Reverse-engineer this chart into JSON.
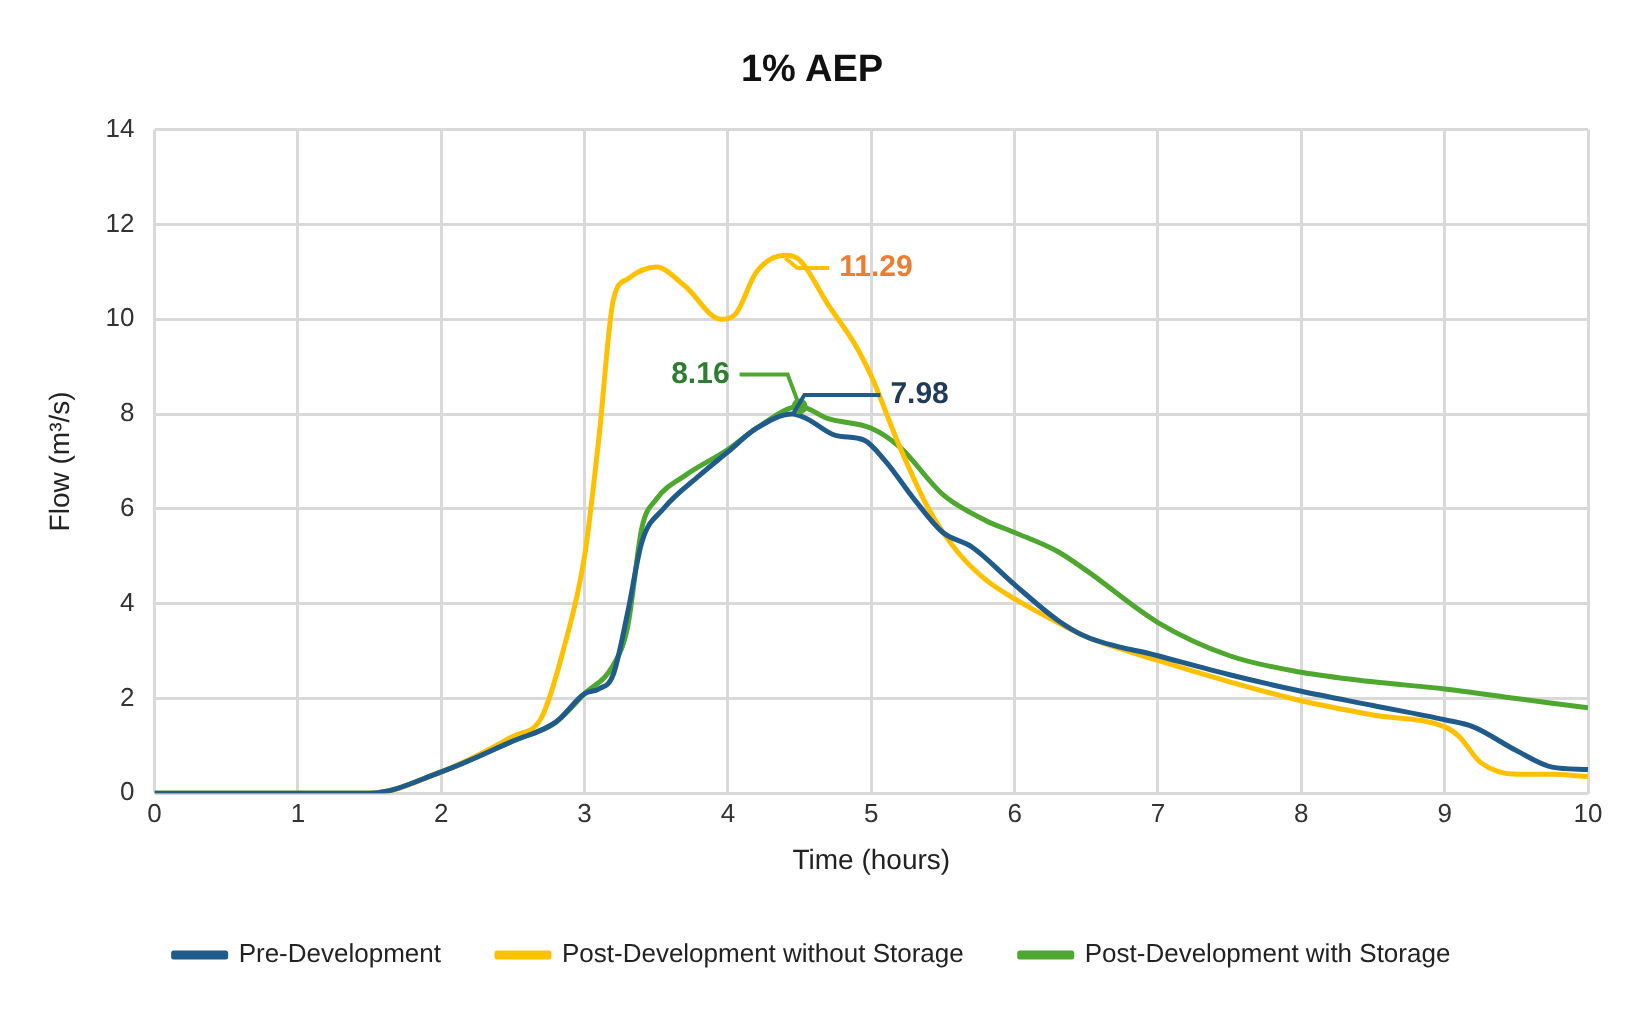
{
  "chart_data": {
    "type": "line",
    "title": "1% AEP",
    "xlabel": "Time (hours)",
    "ylabel": "Flow (m³/s)",
    "xlim": [
      0,
      10
    ],
    "xticks": [
      0,
      1,
      2,
      3,
      4,
      5,
      6,
      7,
      8,
      9,
      10
    ],
    "ylim": [
      0,
      14
    ],
    "yticks": [
      0,
      2,
      4,
      6,
      8,
      10,
      12,
      14
    ],
    "grid": true,
    "legend": "bottom",
    "marker": "none",
    "line_style": "solid",
    "series": [
      {
        "name": "Pre-Development",
        "color": "#1f5c8b",
        "x": [
          0,
          1.5,
          2,
          2.5,
          2.8,
          3,
          3.1,
          3.2,
          3.3,
          3.4,
          3.55,
          3.8,
          4,
          4.2,
          4.45,
          4.55,
          4.75,
          4.95,
          5.1,
          5.3,
          5.5,
          5.7,
          6,
          6.3,
          6.5,
          7,
          7.5,
          8,
          8.5,
          9,
          9.2,
          9.5,
          9.75,
          10
        ],
        "values": [
          0,
          0,
          0.45,
          1.1,
          1.5,
          2.1,
          2.2,
          2.5,
          3.8,
          5.3,
          6,
          6.7,
          7.2,
          7.7,
          8,
          7.9,
          7.55,
          7.45,
          7,
          6.2,
          5.5,
          5.2,
          4.4,
          3.65,
          3.3,
          2.9,
          2.5,
          2.15,
          1.85,
          1.55,
          1.4,
          0.9,
          0.55,
          0.5
        ]
      },
      {
        "name": "Post-Development without Storage",
        "color": "#ffc000",
        "x": [
          0,
          1.5,
          2,
          2.5,
          2.7,
          2.85,
          3,
          3.1,
          3.2,
          3.3,
          3.5,
          3.7,
          3.95,
          4.05,
          4.2,
          4.4,
          4.5,
          4.7,
          4.9,
          5,
          5.2,
          5.4,
          5.6,
          5.8,
          6,
          6.3,
          6.5,
          7,
          7.5,
          8,
          8.5,
          9,
          9.1,
          9.25,
          9.5,
          9.75,
          10
        ],
        "values": [
          0,
          0,
          0.45,
          1.2,
          1.6,
          3,
          5,
          7.5,
          10.4,
          10.85,
          11.1,
          10.7,
          10,
          10.1,
          11,
          11.35,
          11.25,
          10.3,
          9.4,
          8.8,
          7.3,
          6,
          5.1,
          4.5,
          4.1,
          3.6,
          3.3,
          2.8,
          2.35,
          1.95,
          1.65,
          1.4,
          1.2,
          0.65,
          0.4,
          0.4,
          0.35
        ]
      },
      {
        "name": "Post-Development with Storage",
        "color": "#4ea72e",
        "x": [
          0,
          1.5,
          2,
          2.5,
          2.8,
          3,
          3.2,
          3.3,
          3.4,
          3.5,
          3.7,
          4,
          4.2,
          4.5,
          4.7,
          5,
          5.2,
          5.5,
          5.8,
          6,
          6.3,
          6.5,
          7,
          7.5,
          8,
          8.5,
          9,
          9.5,
          10
        ],
        "values": [
          0,
          0,
          0.45,
          1.1,
          1.5,
          2.1,
          2.7,
          3.5,
          5.6,
          6.2,
          6.7,
          7.25,
          7.7,
          8.16,
          7.9,
          7.7,
          7.3,
          6.3,
          5.75,
          5.5,
          5.1,
          4.7,
          3.6,
          2.9,
          2.55,
          2.35,
          2.2,
          2,
          1.8
        ]
      }
    ],
    "annotations": [
      {
        "text": "11.29",
        "x": 4.4,
        "y": 11.29
      },
      {
        "text": "8.16",
        "x": 4.5,
        "y": 8.16
      },
      {
        "text": "7.98",
        "x": 4.45,
        "y": 7.98
      }
    ]
  }
}
